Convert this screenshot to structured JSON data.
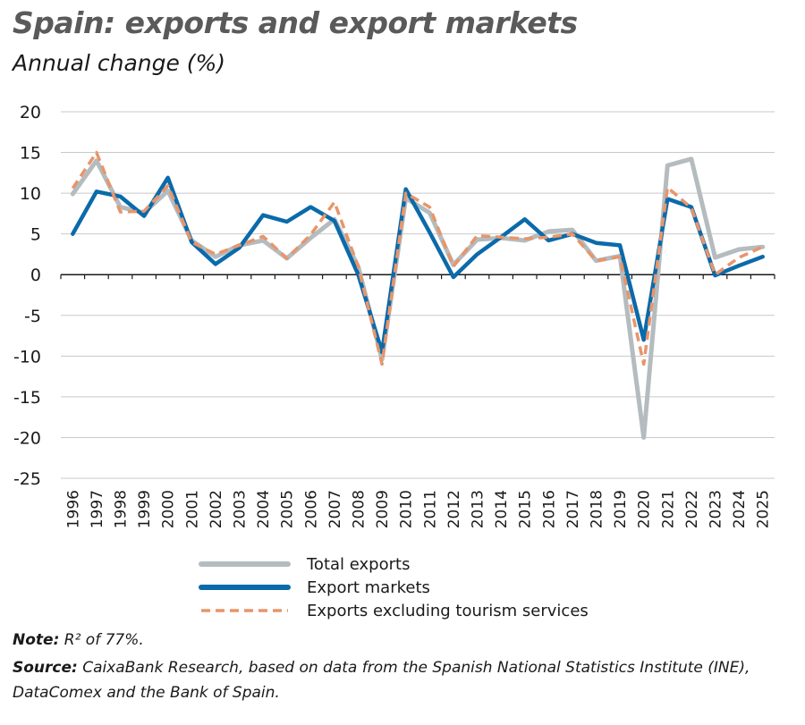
{
  "title": "Spain: exports and export markets",
  "subtitle": "Annual change (%)",
  "note_label": "Note:",
  "note_text": "R² of 77%.",
  "source_label": "Source:",
  "source_text": "CaixaBank Research, based on data from the Spanish National Statistics Institute (INE),",
  "source_text_2": "DataComex and the Bank of Spain.",
  "chart_data": {
    "type": "line",
    "title": "Spain: exports and export markets",
    "subtitle": "Annual change (%)",
    "ylim": [
      -25,
      20
    ],
    "yticks": [
      20,
      15,
      10,
      5,
      0,
      -5,
      -10,
      -15,
      -20,
      -25
    ],
    "grid": true,
    "legend_position": "bottom",
    "categories": [
      "1996",
      "1997",
      "1998",
      "1999",
      "2000",
      "2001",
      "2002",
      "2003",
      "2004",
      "2005",
      "2006",
      "2007",
      "2008",
      "2009",
      "2010",
      "2011",
      "2012",
      "2013",
      "2014",
      "2015",
      "2016",
      "2017",
      "2018",
      "2019",
      "2020",
      "2021",
      "2022",
      "2023",
      "2024",
      "2025"
    ],
    "series": [
      {
        "name": "Total exports",
        "color": "#b4bcbf",
        "style": "solid",
        "values": [
          9.9,
          14.0,
          8.3,
          7.6,
          10.3,
          4.2,
          2.2,
          3.6,
          4.2,
          2.0,
          4.5,
          6.8,
          1.0,
          -10.4,
          9.4,
          7.6,
          1.2,
          4.3,
          4.5,
          4.2,
          5.3,
          5.5,
          1.7,
          2.3,
          -20.0,
          13.4,
          14.2,
          2.1,
          3.1,
          3.4
        ]
      },
      {
        "name": "Export markets",
        "color": "#0b6aaa",
        "style": "solid",
        "values": [
          5.0,
          10.2,
          9.6,
          7.2,
          11.9,
          4.0,
          1.3,
          3.3,
          7.3,
          6.5,
          8.3,
          6.6,
          0.0,
          -9.5,
          10.5,
          5.2,
          -0.3,
          2.5,
          4.6,
          6.8,
          4.2,
          5.0,
          3.9,
          3.6,
          -8.0,
          9.3,
          8.3,
          -0.1,
          1.1,
          2.2
        ]
      },
      {
        "name": "Exports excluding tourism services",
        "color": "#e8956a",
        "style": "dashed",
        "values": [
          10.6,
          15.0,
          7.7,
          7.8,
          10.9,
          4.0,
          2.5,
          3.6,
          4.7,
          2.0,
          4.9,
          8.9,
          1.0,
          -11.0,
          10.0,
          8.3,
          1.0,
          4.8,
          4.6,
          4.4,
          4.6,
          5.0,
          1.7,
          2.2,
          -11.0,
          10.7,
          8.2,
          0.0,
          2.1,
          3.4
        ]
      }
    ]
  }
}
